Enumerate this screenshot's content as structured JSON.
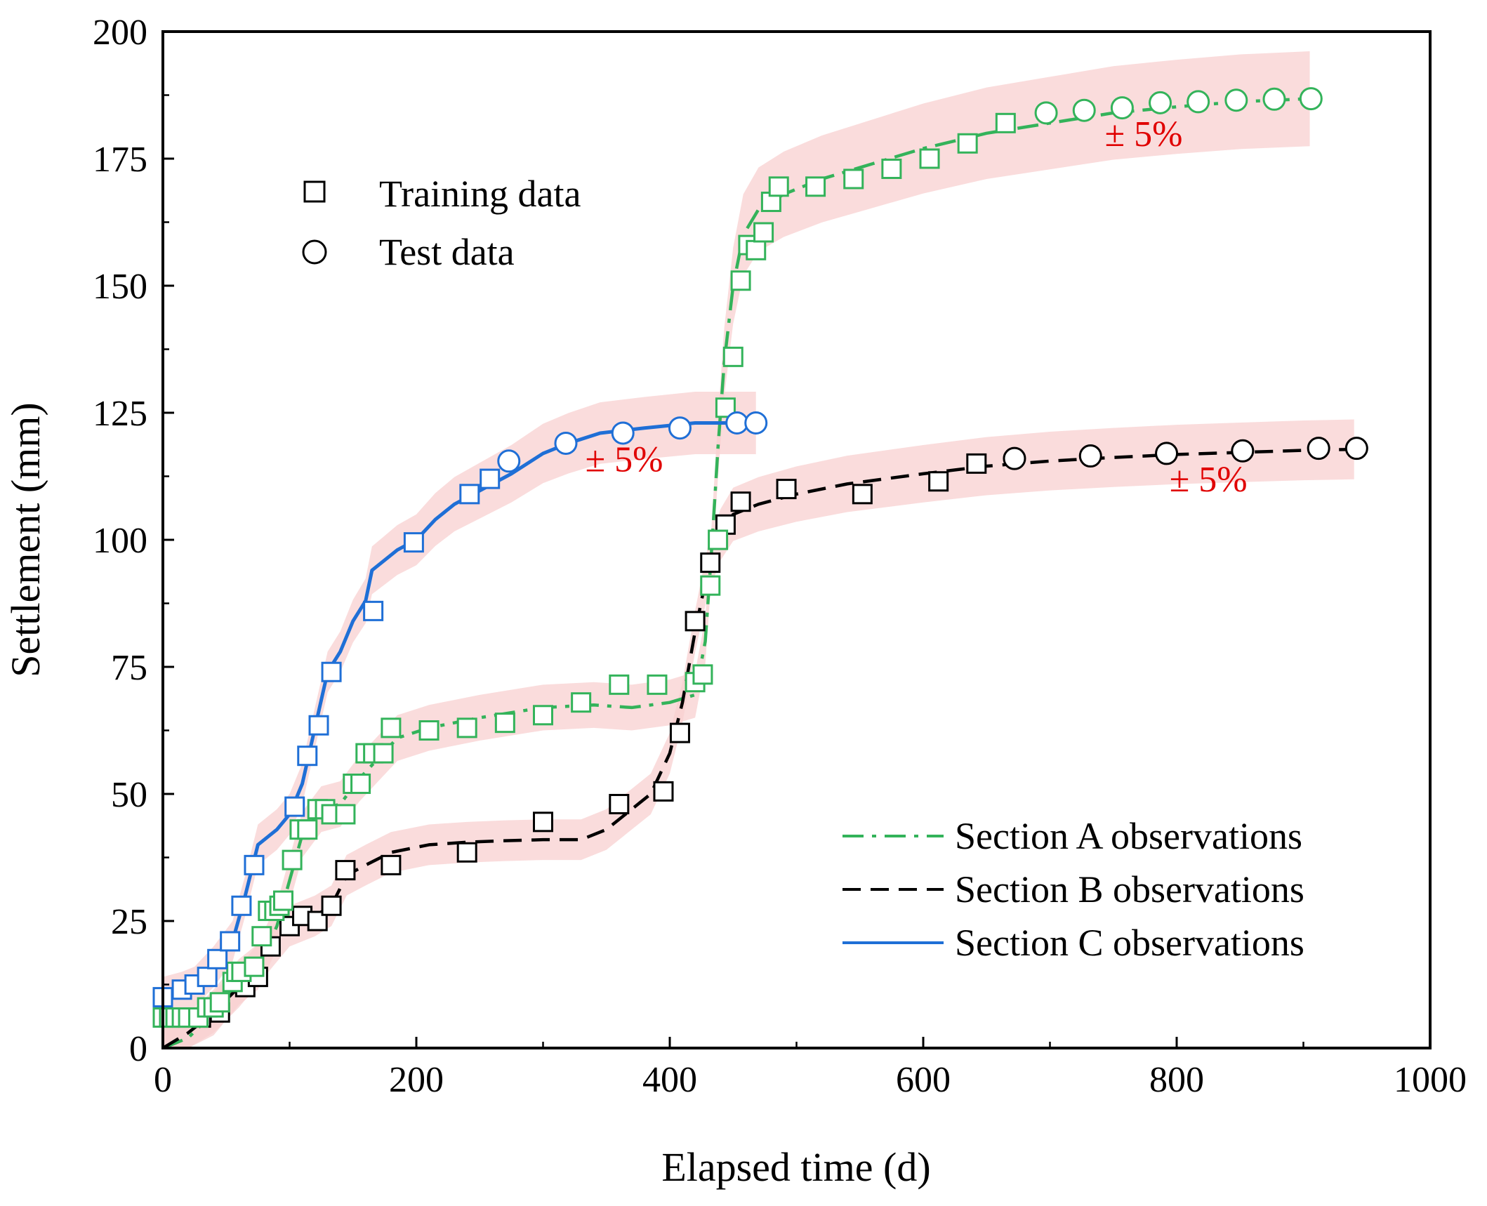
{
  "chart_data": {
    "type": "scatter",
    "title": "",
    "xlabel": "Elapsed time (d)",
    "ylabel": "Settlement (mm)",
    "xlim": [
      0,
      1000
    ],
    "ylim": [
      0,
      200
    ],
    "xticks": [
      0,
      200,
      400,
      600,
      800,
      1000
    ],
    "yticks": [
      0,
      25,
      50,
      75,
      100,
      125,
      150,
      175,
      200
    ],
    "grid": false,
    "colors": {
      "section_a": "#33b35a",
      "section_b": "#000000",
      "section_c": "#1f6fd6",
      "band_fill": "#f8d0d0",
      "band_label": "#e00000"
    },
    "marker_legend": [
      {
        "label": "Training data",
        "marker": "square"
      },
      {
        "label": "Test data",
        "marker": "circle"
      }
    ],
    "line_legend": [
      {
        "label": "Section A observations",
        "series": "section_a",
        "style": "dashdot"
      },
      {
        "label": "Section B observations",
        "series": "section_b",
        "style": "dashed"
      },
      {
        "label": "Section C observations",
        "series": "section_c",
        "style": "solid"
      }
    ],
    "band_labels": [
      {
        "text": "± 5%",
        "series": "section_c",
        "x": 364,
        "y": 113.5
      },
      {
        "text": "± 5%",
        "series": "section_a",
        "x": 774,
        "y": 177.5
      },
      {
        "text": "± 5%",
        "series": "section_b",
        "x": 825,
        "y": 109.5
      }
    ],
    "band_percent": 5,
    "series": [
      {
        "id": "section_a",
        "name": "Section A observations",
        "line": [
          [
            0,
            0
          ],
          [
            20,
            2
          ],
          [
            40,
            7
          ],
          [
            60,
            13
          ],
          [
            75,
            16
          ],
          [
            90,
            24
          ],
          [
            100,
            33
          ],
          [
            110,
            42
          ],
          [
            125,
            47
          ],
          [
            140,
            48
          ],
          [
            155,
            53
          ],
          [
            170,
            57
          ],
          [
            185,
            61
          ],
          [
            210,
            63
          ],
          [
            250,
            65
          ],
          [
            300,
            67
          ],
          [
            340,
            67.5
          ],
          [
            370,
            67
          ],
          [
            400,
            68
          ],
          [
            420,
            69.5
          ],
          [
            428,
            80
          ],
          [
            433,
            98
          ],
          [
            438,
            118
          ],
          [
            443,
            135
          ],
          [
            450,
            150
          ],
          [
            458,
            160
          ],
          [
            470,
            165
          ],
          [
            490,
            168
          ],
          [
            520,
            171
          ],
          [
            560,
            174
          ],
          [
            600,
            177
          ],
          [
            650,
            180
          ],
          [
            700,
            182
          ],
          [
            750,
            184
          ],
          [
            800,
            185.2
          ],
          [
            850,
            186.2
          ],
          [
            905,
            186.8
          ]
        ],
        "train": [
          [
            0,
            6
          ],
          [
            5,
            6
          ],
          [
            10,
            6
          ],
          [
            15,
            6
          ],
          [
            20,
            6
          ],
          [
            28,
            6
          ],
          [
            35,
            8
          ],
          [
            40,
            8
          ],
          [
            45,
            9
          ],
          [
            55,
            13
          ],
          [
            58,
            15
          ],
          [
            62,
            15
          ],
          [
            72,
            16
          ],
          [
            78,
            22
          ],
          [
            83,
            27
          ],
          [
            88,
            27
          ],
          [
            92,
            28
          ],
          [
            95,
            29
          ],
          [
            102,
            37
          ],
          [
            108,
            43
          ],
          [
            114,
            43
          ],
          [
            122,
            47
          ],
          [
            128,
            47
          ],
          [
            133,
            46
          ],
          [
            144,
            46
          ],
          [
            150,
            52
          ],
          [
            156,
            52
          ],
          [
            160,
            58
          ],
          [
            166,
            58
          ],
          [
            174,
            58
          ],
          [
            180,
            63
          ],
          [
            210,
            62.5
          ],
          [
            240,
            63
          ],
          [
            270,
            64
          ],
          [
            300,
            65.5
          ],
          [
            330,
            68
          ],
          [
            360,
            71.5
          ],
          [
            390,
            71.5
          ],
          [
            420,
            72
          ],
          [
            426,
            73.5
          ],
          [
            432,
            91
          ],
          [
            438,
            100
          ],
          [
            444,
            126
          ],
          [
            450,
            136
          ],
          [
            456,
            151
          ],
          [
            462,
            158
          ],
          [
            468,
            157
          ],
          [
            474,
            160.5
          ],
          [
            480,
            166.5
          ],
          [
            486,
            169.5
          ],
          [
            515,
            169.5
          ],
          [
            545,
            171
          ],
          [
            575,
            173
          ],
          [
            605,
            175
          ],
          [
            635,
            178
          ],
          [
            665,
            182
          ]
        ],
        "test": [
          [
            697,
            184
          ],
          [
            727,
            184.5
          ],
          [
            757,
            185
          ],
          [
            787,
            186
          ],
          [
            817,
            186.2
          ],
          [
            847,
            186.5
          ],
          [
            877,
            186.7
          ],
          [
            906,
            186.8
          ]
        ]
      },
      {
        "id": "section_b",
        "name": "Section B observations",
        "line": [
          [
            0,
            0
          ],
          [
            20,
            3
          ],
          [
            40,
            7
          ],
          [
            60,
            12
          ],
          [
            80,
            18
          ],
          [
            100,
            24
          ],
          [
            120,
            26
          ],
          [
            133,
            28
          ],
          [
            145,
            34
          ],
          [
            160,
            36
          ],
          [
            180,
            38.5
          ],
          [
            210,
            40
          ],
          [
            240,
            40.5
          ],
          [
            270,
            40.8
          ],
          [
            300,
            41
          ],
          [
            330,
            41
          ],
          [
            350,
            43
          ],
          [
            365,
            46
          ],
          [
            385,
            50
          ],
          [
            400,
            58
          ],
          [
            410,
            68
          ],
          [
            420,
            82
          ],
          [
            430,
            94
          ],
          [
            440,
            101
          ],
          [
            450,
            105
          ],
          [
            470,
            107
          ],
          [
            500,
            109
          ],
          [
            540,
            111
          ],
          [
            600,
            113
          ],
          [
            650,
            114.5
          ],
          [
            700,
            115.5
          ],
          [
            750,
            116.2
          ],
          [
            800,
            116.8
          ],
          [
            850,
            117.2
          ],
          [
            900,
            117.6
          ],
          [
            940,
            117.8
          ]
        ],
        "train": [
          [
            30,
            6
          ],
          [
            45,
            7
          ],
          [
            65,
            12
          ],
          [
            75,
            14
          ],
          [
            85,
            20
          ],
          [
            100,
            24
          ],
          [
            110,
            26
          ],
          [
            122,
            25
          ],
          [
            133,
            28
          ],
          [
            144,
            35
          ],
          [
            180,
            36
          ],
          [
            240,
            38.5
          ],
          [
            300,
            44.5
          ],
          [
            360,
            48
          ],
          [
            395,
            50.5
          ],
          [
            408,
            62
          ],
          [
            420,
            84
          ],
          [
            432,
            95.5
          ],
          [
            444,
            103
          ],
          [
            456,
            107.5
          ],
          [
            492,
            110
          ],
          [
            552,
            109
          ],
          [
            612,
            111.5
          ],
          [
            642,
            115
          ]
        ],
        "test": [
          [
            672,
            116
          ],
          [
            732,
            116.5
          ],
          [
            792,
            117
          ],
          [
            852,
            117.5
          ],
          [
            912,
            118
          ],
          [
            942,
            118
          ]
        ]
      },
      {
        "id": "section_c",
        "name": "Section C observations",
        "line": [
          [
            0,
            10
          ],
          [
            15,
            11
          ],
          [
            25,
            12
          ],
          [
            40,
            16
          ],
          [
            55,
            21
          ],
          [
            65,
            30
          ],
          [
            75,
            40
          ],
          [
            90,
            43
          ],
          [
            100,
            46
          ],
          [
            110,
            52
          ],
          [
            120,
            63
          ],
          [
            130,
            74
          ],
          [
            140,
            78
          ],
          [
            150,
            84
          ],
          [
            160,
            88
          ],
          [
            165,
            94
          ],
          [
            175,
            96
          ],
          [
            185,
            98
          ],
          [
            200,
            100
          ],
          [
            215,
            104
          ],
          [
            230,
            107
          ],
          [
            245,
            109
          ],
          [
            260,
            111
          ],
          [
            275,
            113
          ],
          [
            300,
            117
          ],
          [
            320,
            119
          ],
          [
            345,
            121
          ],
          [
            380,
            122
          ],
          [
            420,
            123
          ],
          [
            468,
            123
          ]
        ],
        "train": [
          [
            0,
            10
          ],
          [
            15,
            11.5
          ],
          [
            25,
            12.5
          ],
          [
            35,
            14
          ],
          [
            43,
            17.5
          ],
          [
            53,
            21
          ],
          [
            62,
            28
          ],
          [
            72,
            36
          ],
          [
            104,
            47.5
          ],
          [
            114,
            57.5
          ],
          [
            123,
            63.5
          ],
          [
            133,
            74
          ],
          [
            166,
            86
          ],
          [
            198,
            99.5
          ],
          [
            242,
            109
          ],
          [
            258,
            112
          ]
        ],
        "test": [
          [
            273,
            115.5
          ],
          [
            318,
            119
          ],
          [
            363,
            121
          ],
          [
            408,
            122
          ],
          [
            453,
            123
          ],
          [
            468,
            123
          ]
        ]
      }
    ]
  }
}
